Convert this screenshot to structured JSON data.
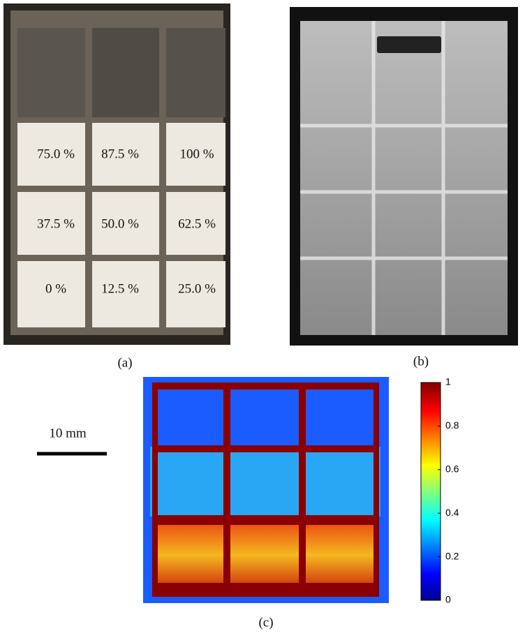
{
  "panel_a": {
    "caption": "(a)",
    "rows": [
      [
        "75.0 %",
        "87.5 %",
        "100 %"
      ],
      [
        "37.5 %",
        "50.0 %",
        "62.5 %"
      ],
      [
        "0 %",
        "12.5 %",
        "25.0 %"
      ]
    ]
  },
  "panel_b": {
    "caption": "(b)"
  },
  "panel_c": {
    "caption": "(c)",
    "scale_bar": "10 mm",
    "colorbar": {
      "lim": [
        0,
        1
      ],
      "ticks": [
        0,
        0.2,
        0.4,
        0.6,
        0.8,
        1
      ]
    }
  }
}
